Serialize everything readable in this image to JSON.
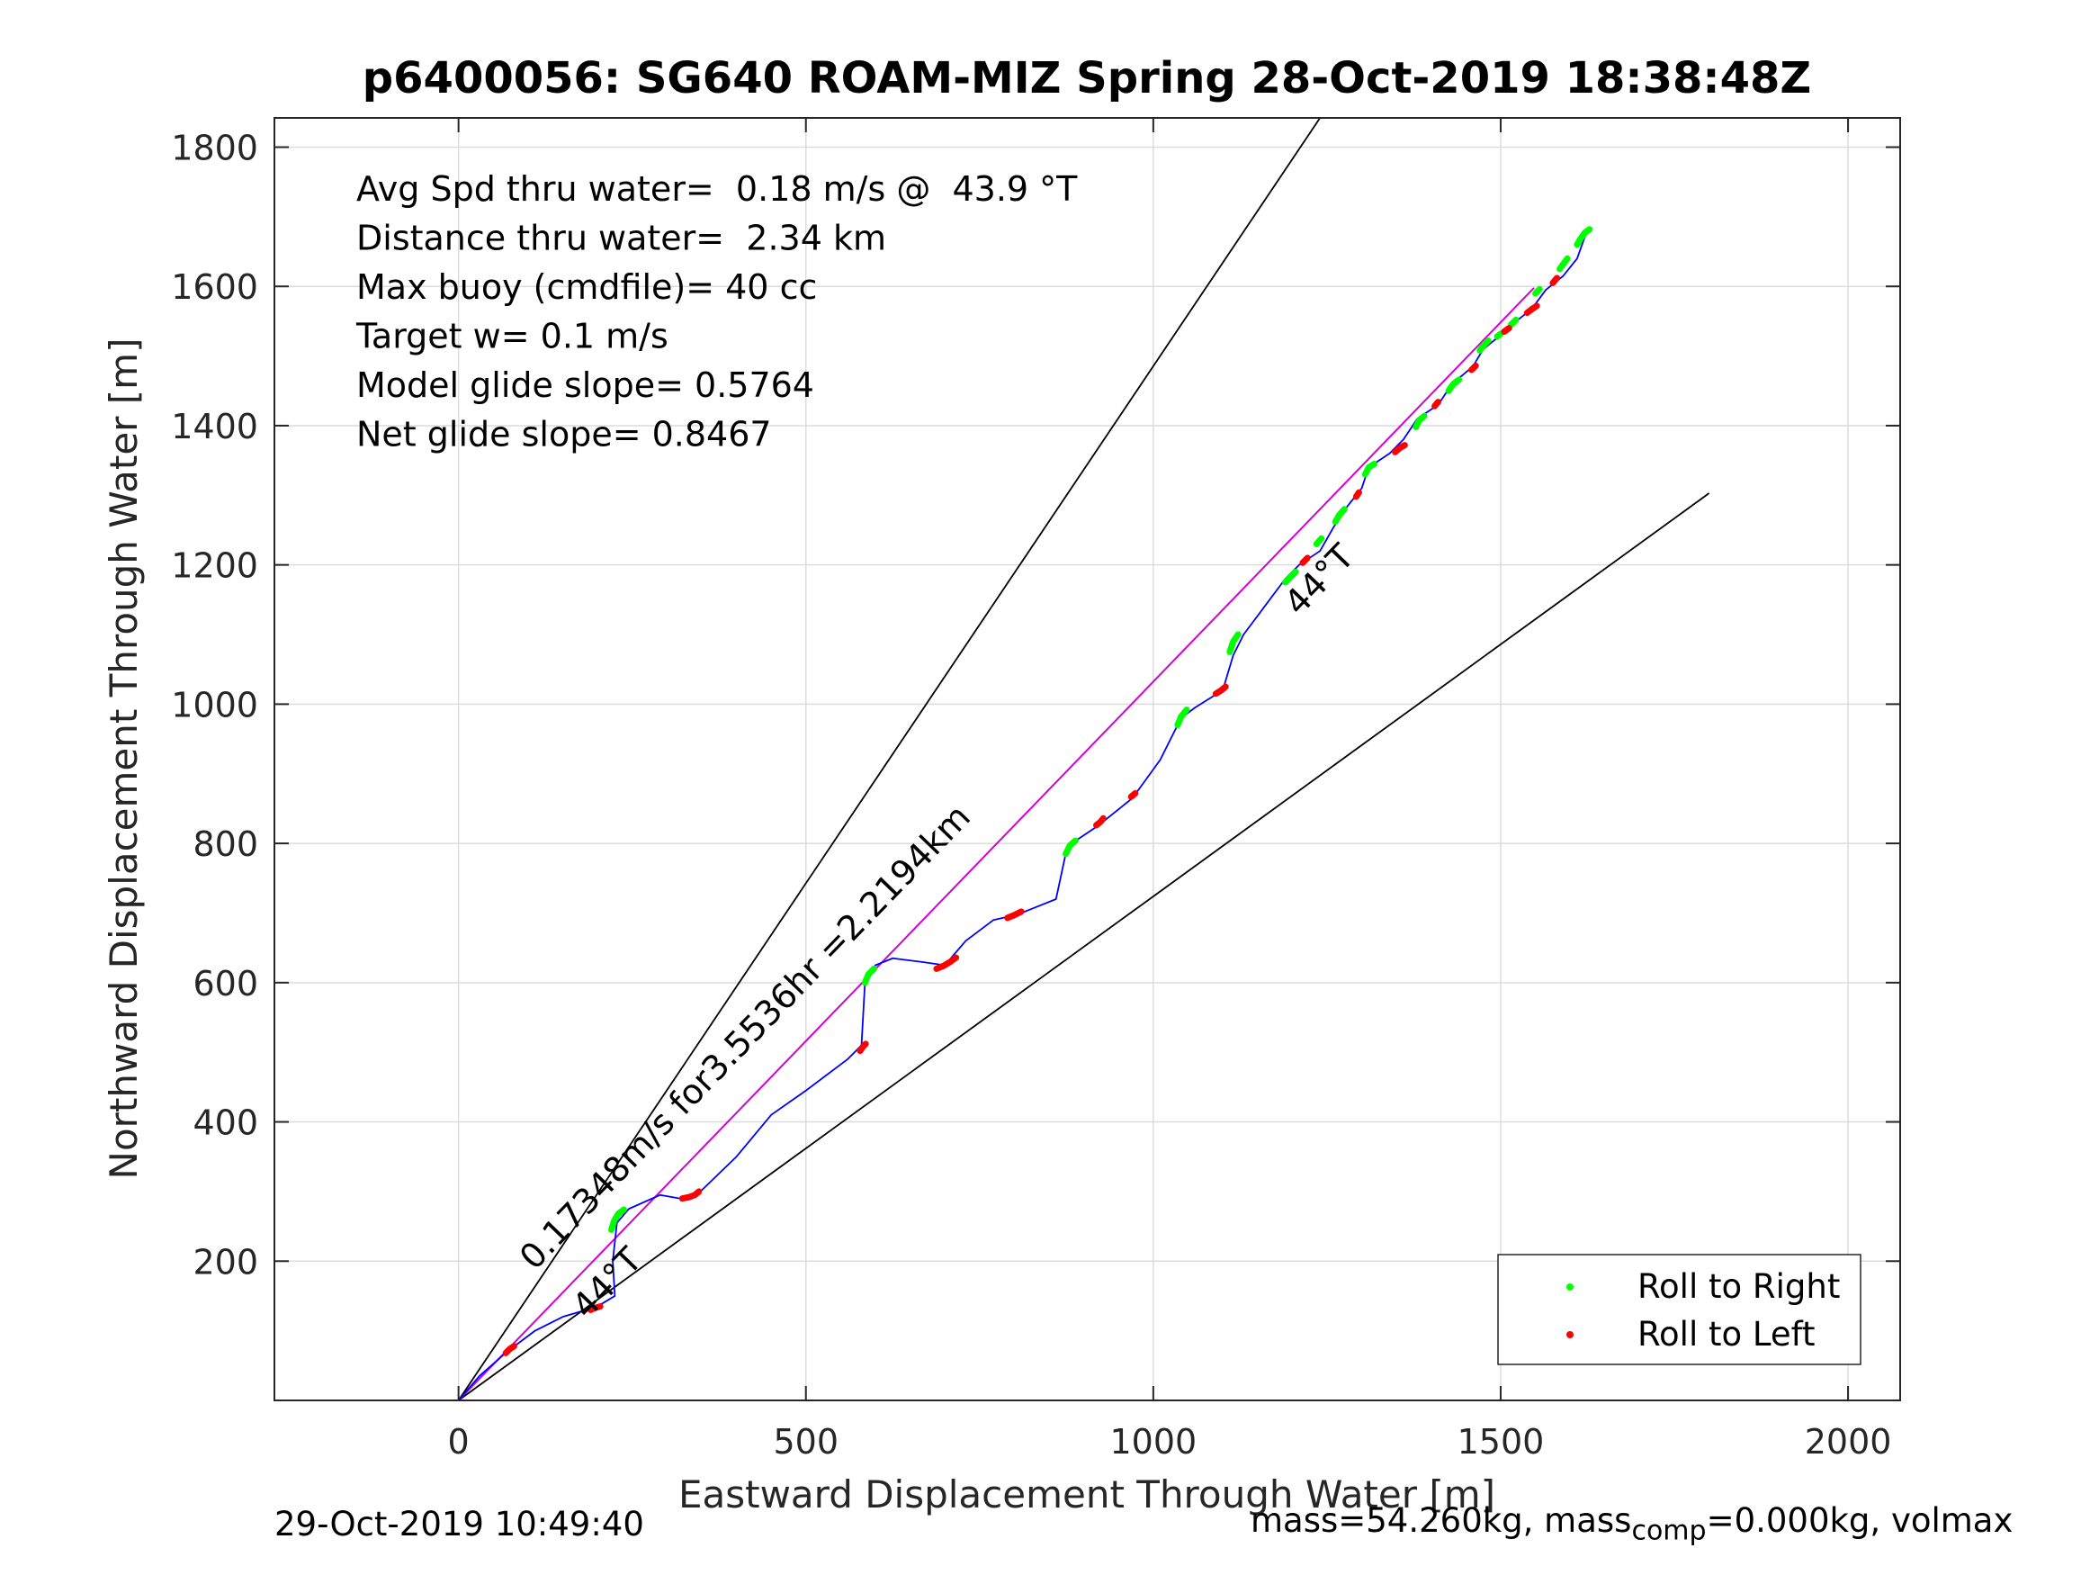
{
  "chart_data": {
    "type": "scatter",
    "title": "p6400056: SG640 ROAM-MIZ Spring 28-Oct-2019 18:38:48Z",
    "xlabel": "Eastward Displacement Through Water [m]",
    "ylabel": "Northward Displacement Through Water [m]",
    "xlim": [
      -265,
      2075
    ],
    "ylim": [
      0,
      1842
    ],
    "xticks": [
      0,
      500,
      1000,
      1500,
      2000
    ],
    "yticks": [
      200,
      400,
      600,
      800,
      1000,
      1200,
      1400,
      1600,
      1800
    ],
    "grid": true,
    "legend_position": "bottom-right",
    "legend": [
      {
        "label": "Roll to Right",
        "color": "#00ff00"
      },
      {
        "label": "Roll to Left",
        "color": "#ff0000"
      }
    ],
    "info_lines": [
      "Avg Spd thru water=  0.18 m/s @  43.9 °T",
      "Distance thru water=  2.34 km",
      "Max buoy (cmdfile)= 40 cc",
      "Target w= 0.1 m/s",
      "Model glide slope= 0.5764",
      "Net glide slope= 0.8467"
    ],
    "annotations": {
      "speed_label": "0.17348m/s for3.5536hr =2.2194km",
      "heading_label_lower": "44°T",
      "heading_label_upper": "44°T"
    },
    "reference_lines": [
      {
        "name": "upper-bound",
        "color": "#000000",
        "points": [
          [
            0,
            0
          ],
          [
            1240,
            1842
          ]
        ]
      },
      {
        "name": "lower-bound",
        "color": "#000000",
        "points": [
          [
            0,
            0
          ],
          [
            1800,
            1303
          ]
        ]
      },
      {
        "name": "mean-heading",
        "color": "#d400d4",
        "points": [
          [
            0,
            0
          ],
          [
            1548,
            1598
          ]
        ]
      }
    ],
    "track": {
      "color": "#0000ff",
      "points": [
        [
          0,
          0
        ],
        [
          30,
          35
        ],
        [
          70,
          70
        ],
        [
          110,
          100
        ],
        [
          150,
          120
        ],
        [
          200,
          135
        ],
        [
          225,
          150
        ],
        [
          222,
          200
        ],
        [
          228,
          255
        ],
        [
          245,
          275
        ],
        [
          290,
          295
        ],
        [
          330,
          288
        ],
        [
          345,
          297
        ],
        [
          400,
          350
        ],
        [
          450,
          410
        ],
        [
          500,
          445
        ],
        [
          560,
          490
        ],
        [
          580,
          510
        ],
        [
          585,
          600
        ],
        [
          600,
          625
        ],
        [
          625,
          635
        ],
        [
          665,
          630
        ],
        [
          700,
          625
        ],
        [
          730,
          660
        ],
        [
          770,
          690
        ],
        [
          805,
          698
        ],
        [
          860,
          720
        ],
        [
          875,
          790
        ],
        [
          890,
          805
        ],
        [
          920,
          825
        ],
        [
          970,
          865
        ],
        [
          1010,
          920
        ],
        [
          1040,
          980
        ],
        [
          1060,
          995
        ],
        [
          1100,
          1020
        ],
        [
          1115,
          1070
        ],
        [
          1130,
          1100
        ],
        [
          1160,
          1140
        ],
        [
          1190,
          1180
        ],
        [
          1210,
          1200
        ],
        [
          1240,
          1220
        ],
        [
          1260,
          1255
        ],
        [
          1280,
          1285
        ],
        [
          1300,
          1310
        ],
        [
          1310,
          1340
        ],
        [
          1340,
          1360
        ],
        [
          1360,
          1380
        ],
        [
          1380,
          1410
        ],
        [
          1410,
          1430
        ],
        [
          1430,
          1460
        ],
        [
          1460,
          1485
        ],
        [
          1475,
          1510
        ],
        [
          1500,
          1530
        ],
        [
          1520,
          1548
        ],
        [
          1545,
          1568
        ],
        [
          1565,
          1595
        ],
        [
          1590,
          1615
        ],
        [
          1610,
          1640
        ],
        [
          1625,
          1682
        ]
      ]
    },
    "series": [
      {
        "name": "Roll to Right",
        "color": "#00ff00",
        "segments": [
          [
            [
              220,
              245
            ],
            [
              224,
              258
            ],
            [
              230,
              268
            ],
            [
              238,
              274
            ]
          ],
          [
            [
              585,
              600
            ],
            [
              590,
              612
            ],
            [
              598,
              620
            ]
          ],
          [
            [
              874,
              785
            ],
            [
              880,
              797
            ],
            [
              888,
              804
            ]
          ],
          [
            [
              1035,
              970
            ],
            [
              1040,
              982
            ],
            [
              1048,
              992
            ]
          ],
          [
            [
              1110,
              1075
            ],
            [
              1115,
              1090
            ],
            [
              1122,
              1100
            ]
          ],
          [
            [
              1190,
              1175
            ],
            [
              1198,
              1183
            ],
            [
              1205,
              1190
            ]
          ],
          [
            [
              1235,
              1230
            ],
            [
              1242,
              1238
            ]
          ],
          [
            [
              1262,
              1262
            ],
            [
              1268,
              1272
            ],
            [
              1275,
              1280
            ]
          ],
          [
            [
              1305,
              1330
            ],
            [
              1310,
              1340
            ],
            [
              1318,
              1345
            ]
          ],
          [
            [
              1378,
              1398
            ],
            [
              1383,
              1408
            ],
            [
              1390,
              1414
            ]
          ],
          [
            [
              1425,
              1450
            ],
            [
              1432,
              1460
            ],
            [
              1440,
              1466
            ]
          ],
          [
            [
              1470,
              1508
            ],
            [
              1476,
              1516
            ],
            [
              1482,
              1522
            ]
          ],
          [
            [
              1495,
              1528
            ],
            [
              1500,
              1532
            ]
          ],
          [
            [
              1515,
              1545
            ],
            [
              1522,
              1552
            ]
          ],
          [
            [
              1550,
              1590
            ],
            [
              1556,
              1596
            ]
          ],
          [
            [
              1585,
              1625
            ],
            [
              1590,
              1632
            ],
            [
              1596,
              1640
            ]
          ],
          [
            [
              1610,
              1660
            ],
            [
              1616,
              1670
            ],
            [
              1622,
              1678
            ],
            [
              1628,
              1682
            ]
          ]
        ]
      },
      {
        "name": "Roll to Left",
        "color": "#ff0000",
        "segments": [
          [
            [
              68,
              68
            ],
            [
              74,
              74
            ],
            [
              80,
              78
            ]
          ],
          [
            [
              190,
              130
            ],
            [
              197,
              133
            ],
            [
              204,
              135
            ]
          ],
          [
            [
              322,
              290
            ],
            [
              332,
              292
            ],
            [
              340,
              295
            ],
            [
              346,
              300
            ]
          ],
          [
            [
              578,
              502
            ],
            [
              582,
              508
            ],
            [
              586,
              512
            ]
          ],
          [
            [
              688,
              620
            ],
            [
              698,
              624
            ],
            [
              708,
              630
            ],
            [
              716,
              636
            ]
          ],
          [
            [
              790,
              693
            ],
            [
              800,
              697
            ],
            [
              810,
              702
            ]
          ],
          [
            [
              918,
              826
            ],
            [
              924,
              831
            ],
            [
              928,
              836
            ]
          ],
          [
            [
              968,
              867
            ],
            [
              974,
              872
            ]
          ],
          [
            [
              1090,
              1015
            ],
            [
              1098,
              1020
            ],
            [
              1104,
              1025
            ]
          ],
          [
            [
              1215,
              1203
            ],
            [
              1222,
              1210
            ]
          ],
          [
            [
              1292,
              1298
            ],
            [
              1296,
              1304
            ]
          ],
          [
            [
              1348,
              1362
            ],
            [
              1355,
              1368
            ],
            [
              1362,
              1372
            ]
          ],
          [
            [
              1405,
              1428
            ],
            [
              1410,
              1434
            ]
          ],
          [
            [
              1458,
              1480
            ],
            [
              1464,
              1486
            ]
          ],
          [
            [
              1505,
              1535
            ],
            [
              1512,
              1540
            ]
          ],
          [
            [
              1538,
              1562
            ],
            [
              1546,
              1568
            ],
            [
              1552,
              1572
            ]
          ],
          [
            [
              1575,
              1605
            ],
            [
              1581,
              1612
            ]
          ]
        ]
      }
    ]
  },
  "footer": {
    "timestamp": "29-Oct-2019 10:49:40",
    "mass_prefix": "mass=54.260kg, mass",
    "mass_sub": "comp",
    "mass_suffix": "=0.000kg, volmax"
  }
}
